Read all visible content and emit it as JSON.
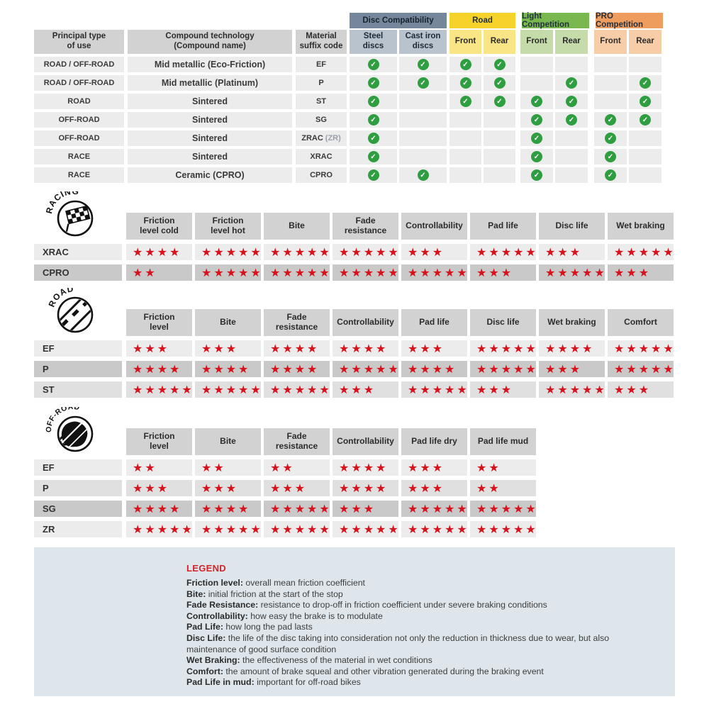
{
  "compat": {
    "groups": [
      {
        "label": "Disc Compatibility"
      },
      {
        "label": "Road"
      },
      {
        "label": "Light Competition"
      },
      {
        "label": "PRO Competition"
      }
    ],
    "headers": {
      "use": "Principal type\nof use",
      "compound": "Compound technology\n(Compound name)",
      "material": "Material\nsuffix code",
      "steel": "Steel\ndiscs",
      "cast": "Cast iron\ndiscs",
      "front": "Front",
      "rear": "Rear"
    },
    "rows": [
      {
        "use": "ROAD / OFF-ROAD",
        "compound": "Mid metallic (Eco-Friction)",
        "code": "EF",
        "checks": [
          1,
          1,
          1,
          1,
          0,
          0,
          0,
          0
        ]
      },
      {
        "use": "ROAD / OFF-ROAD",
        "compound": "Mid metallic (Platinum)",
        "code": "P",
        "checks": [
          1,
          1,
          1,
          1,
          0,
          1,
          0,
          1
        ]
      },
      {
        "use": "ROAD",
        "compound": "Sintered",
        "code": "ST",
        "checks": [
          1,
          0,
          1,
          1,
          1,
          1,
          0,
          1
        ]
      },
      {
        "use": "OFF-ROAD",
        "compound": "Sintered",
        "code": "SG",
        "checks": [
          1,
          0,
          0,
          0,
          1,
          1,
          1,
          1
        ]
      },
      {
        "use": "OFF-ROAD",
        "compound": "Sintered",
        "code": "ZRAC",
        "code_note": "(ZR)",
        "checks": [
          1,
          0,
          0,
          0,
          1,
          0,
          1,
          0
        ]
      },
      {
        "use": "RACE",
        "compound": "Sintered",
        "code": "XRAC",
        "checks": [
          1,
          0,
          0,
          0,
          1,
          0,
          1,
          0
        ]
      },
      {
        "use": "RACE",
        "compound": "Ceramic (CPRO)",
        "code": "CPRO",
        "checks": [
          1,
          1,
          0,
          0,
          1,
          0,
          1,
          0
        ]
      }
    ]
  },
  "ratings": {
    "racing": {
      "section": "RACING",
      "columns": [
        "Friction\nlevel cold",
        "Friction\nlevel hot",
        "Bite",
        "Fade\nresistance",
        "Controllability",
        "Pad life",
        "Disc life",
        "Wet braking"
      ],
      "rows": [
        {
          "label": "XRAC",
          "values": [
            4,
            5,
            5,
            5,
            3,
            5,
            3,
            5
          ]
        },
        {
          "label": "CPRO",
          "values": [
            2,
            5,
            5,
            5,
            5,
            3,
            5,
            3
          ]
        }
      ]
    },
    "road": {
      "section": "ROAD",
      "columns": [
        "Friction\nlevel",
        "Bite",
        "Fade\nresistance",
        "Controllability",
        "Pad life",
        "Disc life",
        "Wet braking",
        "Comfort"
      ],
      "rows": [
        {
          "label": "EF",
          "values": [
            3,
            3,
            4,
            4,
            3,
            5,
            4,
            5
          ]
        },
        {
          "label": "P",
          "values": [
            4,
            4,
            4,
            5,
            4,
            5,
            3,
            5
          ]
        },
        {
          "label": "ST",
          "values": [
            5,
            5,
            5,
            3,
            5,
            3,
            5,
            3
          ]
        }
      ]
    },
    "offroad": {
      "section": "OFF-ROAD",
      "columns": [
        "Friction\nlevel",
        "Bite",
        "Fade\nresistance",
        "Controllability",
        "Pad life dry",
        "Pad life mud"
      ],
      "rows": [
        {
          "label": "EF",
          "values": [
            2,
            2,
            2,
            4,
            3,
            2
          ]
        },
        {
          "label": "P",
          "values": [
            3,
            3,
            3,
            4,
            3,
            2
          ]
        },
        {
          "label": "SG",
          "values": [
            4,
            4,
            5,
            3,
            5,
            5
          ]
        },
        {
          "label": "ZR",
          "values": [
            5,
            5,
            5,
            5,
            5,
            5
          ]
        }
      ]
    }
  },
  "legend": {
    "title": "LEGEND",
    "items": [
      {
        "term": "Friction level",
        "desc": "overall mean friction coefficient"
      },
      {
        "term": "Bite",
        "desc": "initial friction at the start of the stop"
      },
      {
        "term": "Fade Resistance",
        "desc": "resistance to drop-off in friction coefficient under severe braking conditions"
      },
      {
        "term": "Controllability",
        "desc": "how easy the brake is to modulate"
      },
      {
        "term": "Pad Life",
        "desc": "how long the pad lasts"
      },
      {
        "term": "Disc Life",
        "desc": "the life of the disc taking into consideration not only the reduction in thickness due to wear, but also maintenance of good surface condition"
      },
      {
        "term": "Wet Braking",
        "desc": "the effectiveness of the material in wet conditions"
      },
      {
        "term": "Comfort",
        "desc": "the amount of brake squeal and other vibration generated during the braking event"
      },
      {
        "term": "Pad Life in mud",
        "desc": "important for off-road bikes"
      }
    ]
  },
  "colors": {
    "star_red": "#d6131c",
    "check_green": "#2f9e41",
    "legend_red": "#d2232a",
    "disc_band": "#77879b",
    "road_band": "#f5d32b",
    "light_comp_band": "#79b74f",
    "pro_comp_band": "#ee9d5f",
    "legend_bg": "#dee6eb"
  }
}
